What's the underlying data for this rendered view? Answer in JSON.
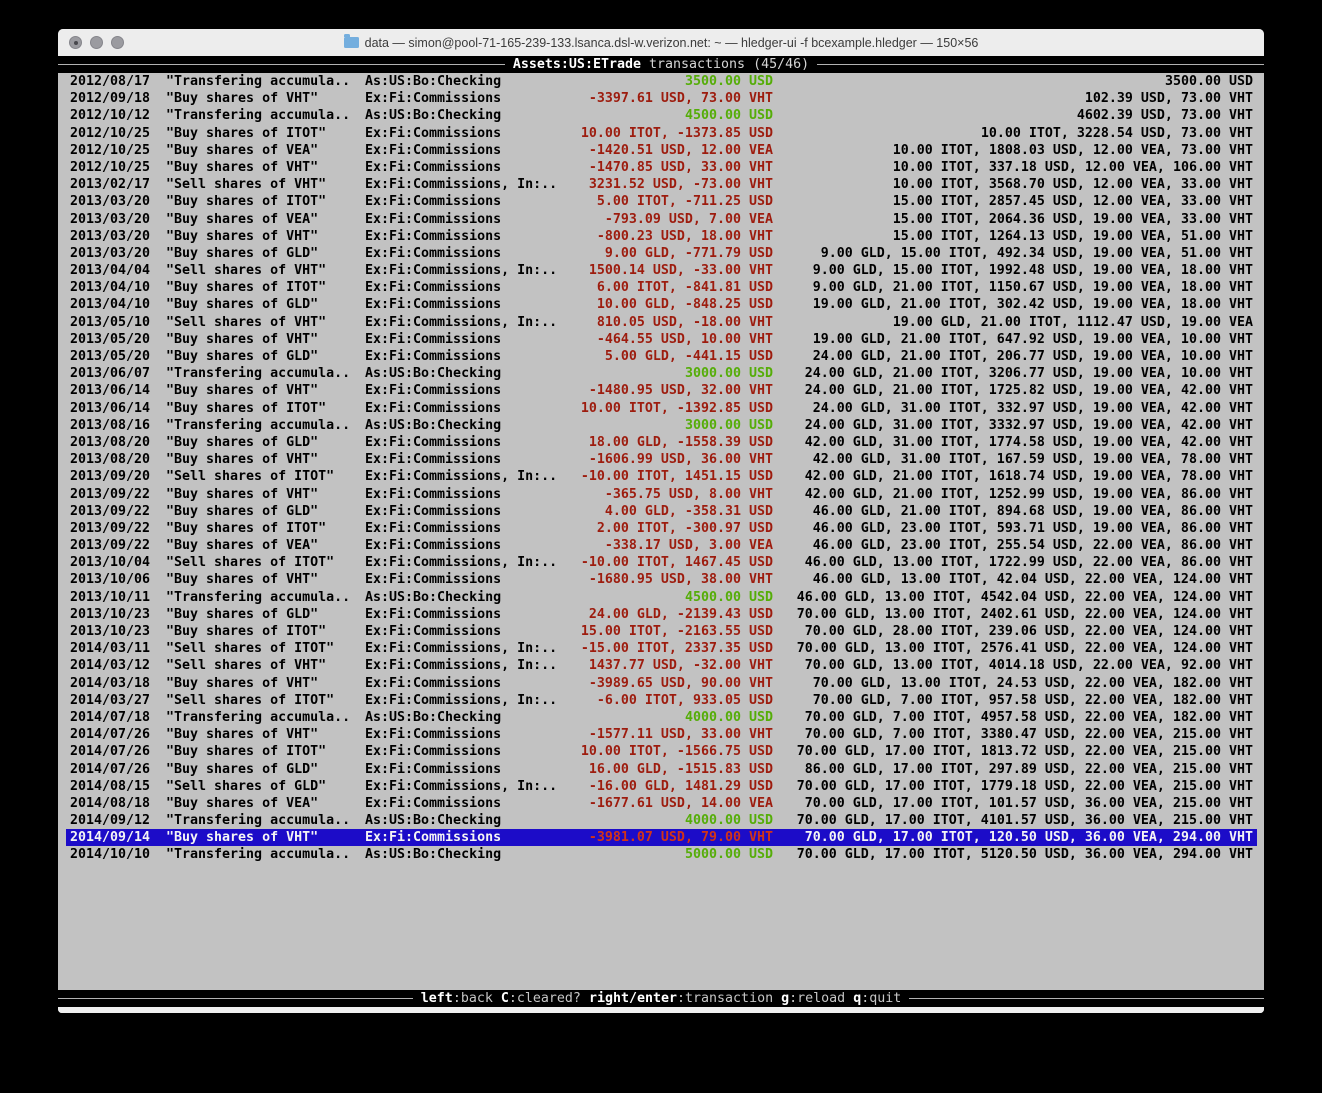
{
  "window": {
    "title": "data — simon@pool-71-165-239-133.lsanca.dsl-w.verizon.net: ~ — hledger-ui -f bcexample.hledger — 150×56"
  },
  "header": {
    "account": "Assets:US:ETrade",
    "rest": "transactions (45/46)"
  },
  "footer": {
    "keys": [
      {
        "key": "left",
        "desc": ":back"
      },
      {
        "key": "C",
        "desc": ":cleared?"
      },
      {
        "key": "right/enter",
        "desc": ":transaction"
      },
      {
        "key": "g",
        "desc": ":reload"
      },
      {
        "key": "q",
        "desc": ":quit"
      }
    ]
  },
  "colors": {
    "terminal_bg": "#c2c2c2",
    "amount_negative_red": "#9d1c0e",
    "amount_deposit_green": "#55ad08",
    "selection_blue": "#1c0cc8",
    "bar_black": "#000000"
  },
  "transactions": [
    {
      "date": "2012/08/17",
      "description": "\"Transfering accumula..",
      "other_accounts": "As:US:Bo:Checking",
      "amount": "3500.00 USD",
      "amount_color": "green",
      "balance": "3500.00 USD",
      "selected": false
    },
    {
      "date": "2012/09/18",
      "description": "\"Buy shares of VHT\"",
      "other_accounts": "Ex:Fi:Commissions",
      "amount": "-3397.61 USD, 73.00 VHT",
      "amount_color": "red",
      "balance": "102.39 USD, 73.00 VHT",
      "selected": false
    },
    {
      "date": "2012/10/12",
      "description": "\"Transfering accumula..",
      "other_accounts": "As:US:Bo:Checking",
      "amount": "4500.00 USD",
      "amount_color": "green",
      "balance": "4602.39 USD, 73.00 VHT",
      "selected": false
    },
    {
      "date": "2012/10/25",
      "description": "\"Buy shares of ITOT\"",
      "other_accounts": "Ex:Fi:Commissions",
      "amount": "10.00 ITOT, -1373.85 USD",
      "amount_color": "red",
      "balance": "10.00 ITOT, 3228.54 USD, 73.00 VHT",
      "selected": false
    },
    {
      "date": "2012/10/25",
      "description": "\"Buy shares of VEA\"",
      "other_accounts": "Ex:Fi:Commissions",
      "amount": "-1420.51 USD, 12.00 VEA",
      "amount_color": "red",
      "balance": "10.00 ITOT, 1808.03 USD, 12.00 VEA, 73.00 VHT",
      "selected": false
    },
    {
      "date": "2012/10/25",
      "description": "\"Buy shares of VHT\"",
      "other_accounts": "Ex:Fi:Commissions",
      "amount": "-1470.85 USD, 33.00 VHT",
      "amount_color": "red",
      "balance": "10.00 ITOT, 337.18 USD, 12.00 VEA, 106.00 VHT",
      "selected": false
    },
    {
      "date": "2013/02/17",
      "description": "\"Sell shares of VHT\"",
      "other_accounts": "Ex:Fi:Commissions, In:..",
      "amount": "3231.52 USD, -73.00 VHT",
      "amount_color": "red",
      "balance": "10.00 ITOT, 3568.70 USD, 12.00 VEA, 33.00 VHT",
      "selected": false
    },
    {
      "date": "2013/03/20",
      "description": "\"Buy shares of ITOT\"",
      "other_accounts": "Ex:Fi:Commissions",
      "amount": "5.00 ITOT, -711.25 USD",
      "amount_color": "red",
      "balance": "15.00 ITOT, 2857.45 USD, 12.00 VEA, 33.00 VHT",
      "selected": false
    },
    {
      "date": "2013/03/20",
      "description": "\"Buy shares of VEA\"",
      "other_accounts": "Ex:Fi:Commissions",
      "amount": "-793.09 USD, 7.00 VEA",
      "amount_color": "red",
      "balance": "15.00 ITOT, 2064.36 USD, 19.00 VEA, 33.00 VHT",
      "selected": false
    },
    {
      "date": "2013/03/20",
      "description": "\"Buy shares of VHT\"",
      "other_accounts": "Ex:Fi:Commissions",
      "amount": "-800.23 USD, 18.00 VHT",
      "amount_color": "red",
      "balance": "15.00 ITOT, 1264.13 USD, 19.00 VEA, 51.00 VHT",
      "selected": false
    },
    {
      "date": "2013/03/20",
      "description": "\"Buy shares of GLD\"",
      "other_accounts": "Ex:Fi:Commissions",
      "amount": "9.00 GLD, -771.79 USD",
      "amount_color": "red",
      "balance": "9.00 GLD, 15.00 ITOT, 492.34 USD, 19.00 VEA, 51.00 VHT",
      "selected": false
    },
    {
      "date": "2013/04/04",
      "description": "\"Sell shares of VHT\"",
      "other_accounts": "Ex:Fi:Commissions, In:..",
      "amount": "1500.14 USD, -33.00 VHT",
      "amount_color": "red",
      "balance": "9.00 GLD, 15.00 ITOT, 1992.48 USD, 19.00 VEA, 18.00 VHT",
      "selected": false
    },
    {
      "date": "2013/04/10",
      "description": "\"Buy shares of ITOT\"",
      "other_accounts": "Ex:Fi:Commissions",
      "amount": "6.00 ITOT, -841.81 USD",
      "amount_color": "red",
      "balance": "9.00 GLD, 21.00 ITOT, 1150.67 USD, 19.00 VEA, 18.00 VHT",
      "selected": false
    },
    {
      "date": "2013/04/10",
      "description": "\"Buy shares of GLD\"",
      "other_accounts": "Ex:Fi:Commissions",
      "amount": "10.00 GLD, -848.25 USD",
      "amount_color": "red",
      "balance": "19.00 GLD, 21.00 ITOT, 302.42 USD, 19.00 VEA, 18.00 VHT",
      "selected": false
    },
    {
      "date": "2013/05/10",
      "description": "\"Sell shares of VHT\"",
      "other_accounts": "Ex:Fi:Commissions, In:..",
      "amount": "810.05 USD, -18.00 VHT",
      "amount_color": "red",
      "balance": "19.00 GLD, 21.00 ITOT, 1112.47 USD, 19.00 VEA",
      "selected": false
    },
    {
      "date": "2013/05/20",
      "description": "\"Buy shares of VHT\"",
      "other_accounts": "Ex:Fi:Commissions",
      "amount": "-464.55 USD, 10.00 VHT",
      "amount_color": "red",
      "balance": "19.00 GLD, 21.00 ITOT, 647.92 USD, 19.00 VEA, 10.00 VHT",
      "selected": false
    },
    {
      "date": "2013/05/20",
      "description": "\"Buy shares of GLD\"",
      "other_accounts": "Ex:Fi:Commissions",
      "amount": "5.00 GLD, -441.15 USD",
      "amount_color": "red",
      "balance": "24.00 GLD, 21.00 ITOT, 206.77 USD, 19.00 VEA, 10.00 VHT",
      "selected": false
    },
    {
      "date": "2013/06/07",
      "description": "\"Transfering accumula..",
      "other_accounts": "As:US:Bo:Checking",
      "amount": "3000.00 USD",
      "amount_color": "green",
      "balance": "24.00 GLD, 21.00 ITOT, 3206.77 USD, 19.00 VEA, 10.00 VHT",
      "selected": false
    },
    {
      "date": "2013/06/14",
      "description": "\"Buy shares of VHT\"",
      "other_accounts": "Ex:Fi:Commissions",
      "amount": "-1480.95 USD, 32.00 VHT",
      "amount_color": "red",
      "balance": "24.00 GLD, 21.00 ITOT, 1725.82 USD, 19.00 VEA, 42.00 VHT",
      "selected": false
    },
    {
      "date": "2013/06/14",
      "description": "\"Buy shares of ITOT\"",
      "other_accounts": "Ex:Fi:Commissions",
      "amount": "10.00 ITOT, -1392.85 USD",
      "amount_color": "red",
      "balance": "24.00 GLD, 31.00 ITOT, 332.97 USD, 19.00 VEA, 42.00 VHT",
      "selected": false
    },
    {
      "date": "2013/08/16",
      "description": "\"Transfering accumula..",
      "other_accounts": "As:US:Bo:Checking",
      "amount": "3000.00 USD",
      "amount_color": "green",
      "balance": "24.00 GLD, 31.00 ITOT, 3332.97 USD, 19.00 VEA, 42.00 VHT",
      "selected": false
    },
    {
      "date": "2013/08/20",
      "description": "\"Buy shares of GLD\"",
      "other_accounts": "Ex:Fi:Commissions",
      "amount": "18.00 GLD, -1558.39 USD",
      "amount_color": "red",
      "balance": "42.00 GLD, 31.00 ITOT, 1774.58 USD, 19.00 VEA, 42.00 VHT",
      "selected": false
    },
    {
      "date": "2013/08/20",
      "description": "\"Buy shares of VHT\"",
      "other_accounts": "Ex:Fi:Commissions",
      "amount": "-1606.99 USD, 36.00 VHT",
      "amount_color": "red",
      "balance": "42.00 GLD, 31.00 ITOT, 167.59 USD, 19.00 VEA, 78.00 VHT",
      "selected": false
    },
    {
      "date": "2013/09/20",
      "description": "\"Sell shares of ITOT\"",
      "other_accounts": "Ex:Fi:Commissions, In:..",
      "amount": "-10.00 ITOT, 1451.15 USD",
      "amount_color": "red",
      "balance": "42.00 GLD, 21.00 ITOT, 1618.74 USD, 19.00 VEA, 78.00 VHT",
      "selected": false
    },
    {
      "date": "2013/09/22",
      "description": "\"Buy shares of VHT\"",
      "other_accounts": "Ex:Fi:Commissions",
      "amount": "-365.75 USD, 8.00 VHT",
      "amount_color": "red",
      "balance": "42.00 GLD, 21.00 ITOT, 1252.99 USD, 19.00 VEA, 86.00 VHT",
      "selected": false
    },
    {
      "date": "2013/09/22",
      "description": "\"Buy shares of GLD\"",
      "other_accounts": "Ex:Fi:Commissions",
      "amount": "4.00 GLD, -358.31 USD",
      "amount_color": "red",
      "balance": "46.00 GLD, 21.00 ITOT, 894.68 USD, 19.00 VEA, 86.00 VHT",
      "selected": false
    },
    {
      "date": "2013/09/22",
      "description": "\"Buy shares of ITOT\"",
      "other_accounts": "Ex:Fi:Commissions",
      "amount": "2.00 ITOT, -300.97 USD",
      "amount_color": "red",
      "balance": "46.00 GLD, 23.00 ITOT, 593.71 USD, 19.00 VEA, 86.00 VHT",
      "selected": false
    },
    {
      "date": "2013/09/22",
      "description": "\"Buy shares of VEA\"",
      "other_accounts": "Ex:Fi:Commissions",
      "amount": "-338.17 USD, 3.00 VEA",
      "amount_color": "red",
      "balance": "46.00 GLD, 23.00 ITOT, 255.54 USD, 22.00 VEA, 86.00 VHT",
      "selected": false
    },
    {
      "date": "2013/10/04",
      "description": "\"Sell shares of ITOT\"",
      "other_accounts": "Ex:Fi:Commissions, In:..",
      "amount": "-10.00 ITOT, 1467.45 USD",
      "amount_color": "red",
      "balance": "46.00 GLD, 13.00 ITOT, 1722.99 USD, 22.00 VEA, 86.00 VHT",
      "selected": false
    },
    {
      "date": "2013/10/06",
      "description": "\"Buy shares of VHT\"",
      "other_accounts": "Ex:Fi:Commissions",
      "amount": "-1680.95 USD, 38.00 VHT",
      "amount_color": "red",
      "balance": "46.00 GLD, 13.00 ITOT, 42.04 USD, 22.00 VEA, 124.00 VHT",
      "selected": false
    },
    {
      "date": "2013/10/11",
      "description": "\"Transfering accumula..",
      "other_accounts": "As:US:Bo:Checking",
      "amount": "4500.00 USD",
      "amount_color": "green",
      "balance": "46.00 GLD, 13.00 ITOT, 4542.04 USD, 22.00 VEA, 124.00 VHT",
      "selected": false
    },
    {
      "date": "2013/10/23",
      "description": "\"Buy shares of GLD\"",
      "other_accounts": "Ex:Fi:Commissions",
      "amount": "24.00 GLD, -2139.43 USD",
      "amount_color": "red",
      "balance": "70.00 GLD, 13.00 ITOT, 2402.61 USD, 22.00 VEA, 124.00 VHT",
      "selected": false
    },
    {
      "date": "2013/10/23",
      "description": "\"Buy shares of ITOT\"",
      "other_accounts": "Ex:Fi:Commissions",
      "amount": "15.00 ITOT, -2163.55 USD",
      "amount_color": "red",
      "balance": "70.00 GLD, 28.00 ITOT, 239.06 USD, 22.00 VEA, 124.00 VHT",
      "selected": false
    },
    {
      "date": "2014/03/11",
      "description": "\"Sell shares of ITOT\"",
      "other_accounts": "Ex:Fi:Commissions, In:..",
      "amount": "-15.00 ITOT, 2337.35 USD",
      "amount_color": "red",
      "balance": "70.00 GLD, 13.00 ITOT, 2576.41 USD, 22.00 VEA, 124.00 VHT",
      "selected": false
    },
    {
      "date": "2014/03/12",
      "description": "\"Sell shares of VHT\"",
      "other_accounts": "Ex:Fi:Commissions, In:..",
      "amount": "1437.77 USD, -32.00 VHT",
      "amount_color": "red",
      "balance": "70.00 GLD, 13.00 ITOT, 4014.18 USD, 22.00 VEA, 92.00 VHT",
      "selected": false
    },
    {
      "date": "2014/03/18",
      "description": "\"Buy shares of VHT\"",
      "other_accounts": "Ex:Fi:Commissions",
      "amount": "-3989.65 USD, 90.00 VHT",
      "amount_color": "red",
      "balance": "70.00 GLD, 13.00 ITOT, 24.53 USD, 22.00 VEA, 182.00 VHT",
      "selected": false
    },
    {
      "date": "2014/03/27",
      "description": "\"Sell shares of ITOT\"",
      "other_accounts": "Ex:Fi:Commissions, In:..",
      "amount": "-6.00 ITOT, 933.05 USD",
      "amount_color": "red",
      "balance": "70.00 GLD, 7.00 ITOT, 957.58 USD, 22.00 VEA, 182.00 VHT",
      "selected": false
    },
    {
      "date": "2014/07/18",
      "description": "\"Transfering accumula..",
      "other_accounts": "As:US:Bo:Checking",
      "amount": "4000.00 USD",
      "amount_color": "green",
      "balance": "70.00 GLD, 7.00 ITOT, 4957.58 USD, 22.00 VEA, 182.00 VHT",
      "selected": false
    },
    {
      "date": "2014/07/26",
      "description": "\"Buy shares of VHT\"",
      "other_accounts": "Ex:Fi:Commissions",
      "amount": "-1577.11 USD, 33.00 VHT",
      "amount_color": "red",
      "balance": "70.00 GLD, 7.00 ITOT, 3380.47 USD, 22.00 VEA, 215.00 VHT",
      "selected": false
    },
    {
      "date": "2014/07/26",
      "description": "\"Buy shares of ITOT\"",
      "other_accounts": "Ex:Fi:Commissions",
      "amount": "10.00 ITOT, -1566.75 USD",
      "amount_color": "red",
      "balance": "70.00 GLD, 17.00 ITOT, 1813.72 USD, 22.00 VEA, 215.00 VHT",
      "selected": false
    },
    {
      "date": "2014/07/26",
      "description": "\"Buy shares of GLD\"",
      "other_accounts": "Ex:Fi:Commissions",
      "amount": "16.00 GLD, -1515.83 USD",
      "amount_color": "red",
      "balance": "86.00 GLD, 17.00 ITOT, 297.89 USD, 22.00 VEA, 215.00 VHT",
      "selected": false
    },
    {
      "date": "2014/08/15",
      "description": "\"Sell shares of GLD\"",
      "other_accounts": "Ex:Fi:Commissions, In:..",
      "amount": "-16.00 GLD, 1481.29 USD",
      "amount_color": "red",
      "balance": "70.00 GLD, 17.00 ITOT, 1779.18 USD, 22.00 VEA, 215.00 VHT",
      "selected": false
    },
    {
      "date": "2014/08/18",
      "description": "\"Buy shares of VEA\"",
      "other_accounts": "Ex:Fi:Commissions",
      "amount": "-1677.61 USD, 14.00 VEA",
      "amount_color": "red",
      "balance": "70.00 GLD, 17.00 ITOT, 101.57 USD, 36.00 VEA, 215.00 VHT",
      "selected": false
    },
    {
      "date": "2014/09/12",
      "description": "\"Transfering accumula..",
      "other_accounts": "As:US:Bo:Checking",
      "amount": "4000.00 USD",
      "amount_color": "green",
      "balance": "70.00 GLD, 17.00 ITOT, 4101.57 USD, 36.00 VEA, 215.00 VHT",
      "selected": false
    },
    {
      "date": "2014/09/14",
      "description": "\"Buy shares of VHT\"",
      "other_accounts": "Ex:Fi:Commissions",
      "amount": "-3981.07 USD, 79.00 VHT",
      "amount_color": "red",
      "balance": "70.00 GLD, 17.00 ITOT, 120.50 USD, 36.00 VEA, 294.00 VHT",
      "selected": true
    },
    {
      "date": "2014/10/10",
      "description": "\"Transfering accumula..",
      "other_accounts": "As:US:Bo:Checking",
      "amount": "5000.00 USD",
      "amount_color": "green",
      "balance": "70.00 GLD, 17.00 ITOT, 5120.50 USD, 36.00 VEA, 294.00 VHT",
      "selected": false
    }
  ]
}
